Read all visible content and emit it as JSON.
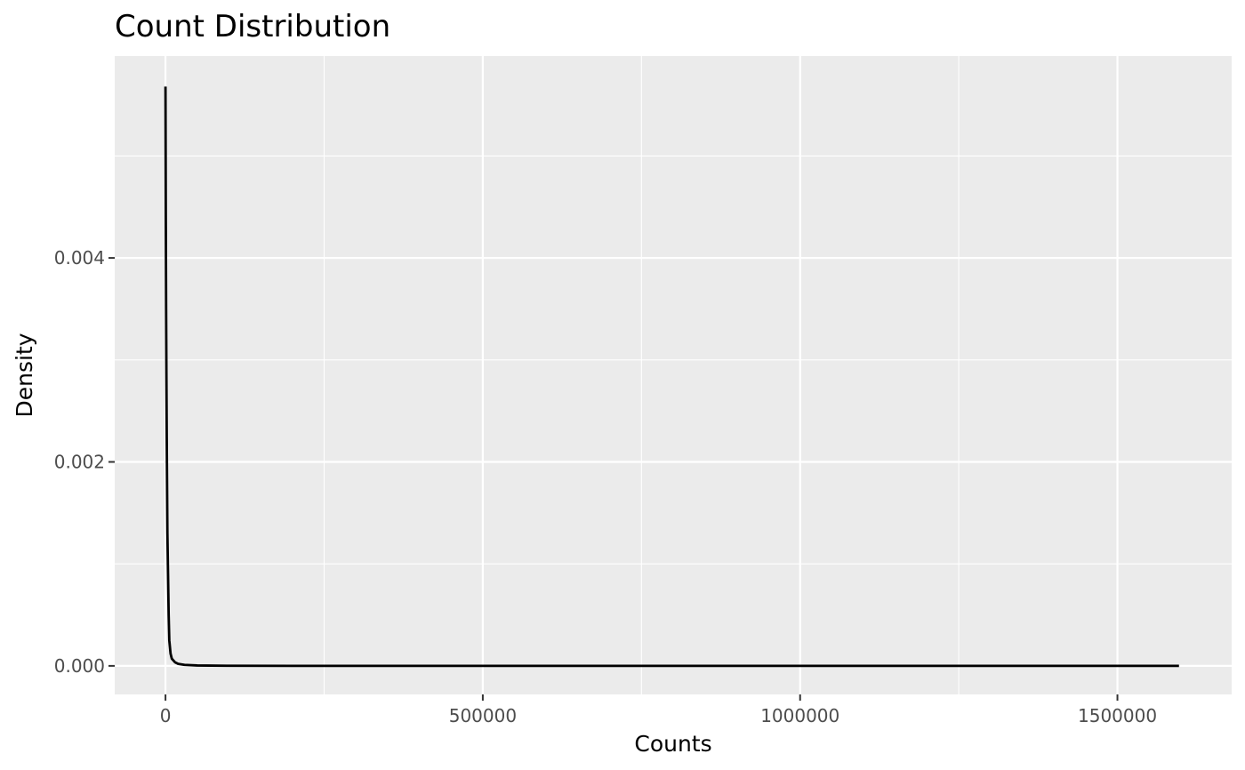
{
  "chart_data": {
    "type": "line",
    "title": "Count Distribution",
    "xlabel": "Counts",
    "ylabel": "Density",
    "xlim": [
      -80000,
      1680000
    ],
    "ylim": [
      -0.00028,
      0.00598
    ],
    "x_ticks": [
      0,
      500000,
      1000000,
      1500000
    ],
    "x_tick_labels": [
      "0",
      "500000",
      "1000000",
      "1500000"
    ],
    "y_ticks": [
      0,
      0.002,
      0.004
    ],
    "y_tick_labels": [
      "0.000",
      "0.002",
      "0.004"
    ],
    "grid": true,
    "background": "#ebebeb",
    "grid_color": "#ffffff",
    "line_color": "#000000",
    "series": [
      {
        "x": [
          0,
          200,
          500,
          1000,
          1500,
          2000,
          3000,
          4000,
          5000,
          6000,
          8000,
          10000,
          15000,
          20000,
          30000,
          50000,
          100000,
          200000,
          500000,
          1000000,
          1500000,
          1597000
        ],
        "y": [
          0.00568,
          0.0052,
          0.0044,
          0.0035,
          0.0028,
          0.0022,
          0.0013,
          0.0009,
          0.0005,
          0.00025,
          0.00012,
          7e-05,
          3.5e-05,
          2e-05,
          1e-05,
          4e-06,
          1e-06,
          3e-07,
          1e-07,
          5e-08,
          2e-08,
          0.0
        ]
      }
    ]
  }
}
